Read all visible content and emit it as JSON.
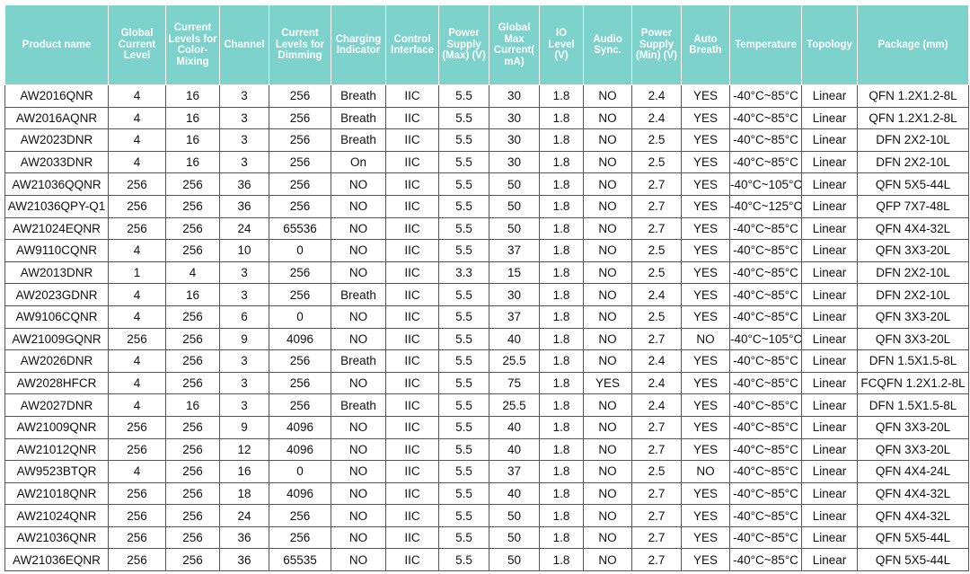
{
  "columns": [
    "Product name",
    "Global Current Level",
    "Current Levels for Color-Mixing",
    "Channel",
    "Current Levels for Dimming",
    "Charging Indicator",
    "Control Interface",
    "Power Supply (Max) (V)",
    "Global Max Current( mA)",
    "IO Level (V)",
    "Audio Sync.",
    "Power Supply (Min) (V)",
    "Auto Breath",
    "Temperature",
    "Topology",
    "Package (mm)"
  ],
  "rows": [
    [
      "AW2016QNR",
      "4",
      "16",
      "3",
      "256",
      "Breath",
      "IIC",
      "5.5",
      "30",
      "1.8",
      "NO",
      "2.4",
      "YES",
      "-40°C~85°C",
      "Linear",
      "QFN 1.2X1.2-8L"
    ],
    [
      "AW2016AQNR",
      "4",
      "16",
      "3",
      "256",
      "Breath",
      "IIC",
      "5.5",
      "30",
      "1.8",
      "NO",
      "2.4",
      "YES",
      "-40°C~85°C",
      "Linear",
      "QFN 1.2X1.2-8L"
    ],
    [
      "AW2023DNR",
      "4",
      "16",
      "3",
      "256",
      "Breath",
      "IIC",
      "5.5",
      "30",
      "1.8",
      "NO",
      "2.5",
      "YES",
      "-40°C~85°C",
      "Linear",
      "DFN 2X2-10L"
    ],
    [
      "AW2033DNR",
      "4",
      "16",
      "3",
      "256",
      "On",
      "IIC",
      "5.5",
      "30",
      "1.8",
      "NO",
      "2.5",
      "YES",
      "-40°C~85°C",
      "Linear",
      "DFN 2X2-10L"
    ],
    [
      "AW21036QQNR",
      "256",
      "256",
      "36",
      "256",
      "NO",
      "IIC",
      "5.5",
      "50",
      "1.8",
      "NO",
      "2.7",
      "YES",
      "-40°C~105°C",
      "Linear",
      "QFN 5X5-44L"
    ],
    [
      "AW21036QPY-Q1",
      "256",
      "256",
      "36",
      "256",
      "NO",
      "IIC",
      "5.5",
      "50",
      "1.8",
      "NO",
      "2.7",
      "YES",
      "-40°C~125°C",
      "Linear",
      "QFP 7X7-48L"
    ],
    [
      "AW21024EQNR",
      "256",
      "256",
      "24",
      "65536",
      "NO",
      "IIC",
      "5.5",
      "50",
      "1.8",
      "NO",
      "2.7",
      "YES",
      "-40°C~85°C",
      "Linear",
      "QFN 4X4-32L"
    ],
    [
      "AW9110CQNR",
      "4",
      "256",
      "10",
      "0",
      "NO",
      "IIC",
      "5.5",
      "37",
      "1.8",
      "NO",
      "2.5",
      "YES",
      "-40°C~85°C",
      "Linear",
      "QFN 3X3-20L"
    ],
    [
      "AW2013DNR",
      "1",
      "4",
      "3",
      "256",
      "NO",
      "IIC",
      "3.3",
      "15",
      "1.8",
      "NO",
      "2.5",
      "YES",
      "-40°C~85°C",
      "Linear",
      "DFN 2X2-10L"
    ],
    [
      "AW2023GDNR",
      "4",
      "16",
      "3",
      "256",
      "Breath",
      "IIC",
      "5.5",
      "30",
      "1.8",
      "NO",
      "2.4",
      "YES",
      "-40°C~85°C",
      "Linear",
      "DFN 2X2-10L"
    ],
    [
      "AW9106CQNR",
      "4",
      "256",
      "6",
      "0",
      "NO",
      "IIC",
      "5.5",
      "37",
      "1.8",
      "NO",
      "2.5",
      "YES",
      "-40°C~85°C",
      "Linear",
      "QFN 3X3-20L"
    ],
    [
      "AW21009GQNR",
      "256",
      "256",
      "9",
      "4096",
      "NO",
      "IIC",
      "5.5",
      "40",
      "1.8",
      "NO",
      "2.7",
      "NO",
      "-40°C~105°C",
      "Linear",
      "QFN 3X3-20L"
    ],
    [
      "AW2026DNR",
      "4",
      "256",
      "3",
      "256",
      "Breath",
      "IIC",
      "5.5",
      "25.5",
      "1.8",
      "NO",
      "2.4",
      "YES",
      "-40°C~85°C",
      "Linear",
      "DFN 1.5X1.5-8L"
    ],
    [
      "AW2028HFCR",
      "4",
      "256",
      "3",
      "256",
      "NO",
      "IIC",
      "5.5",
      "75",
      "1.8",
      "YES",
      "2.4",
      "YES",
      "-40°C~85°C",
      "Linear",
      "FCQFN 1.2X1.2-8L"
    ],
    [
      "AW2027DNR",
      "4",
      "16",
      "3",
      "256",
      "Breath",
      "IIC",
      "5.5",
      "25.5",
      "1.8",
      "NO",
      "2.4",
      "YES",
      "-40°C~85°C",
      "Linear",
      "DFN 1.5X1.5-8L"
    ],
    [
      "AW21009QNR",
      "256",
      "256",
      "9",
      "4096",
      "NO",
      "IIC",
      "5.5",
      "40",
      "1.8",
      "NO",
      "2.7",
      "YES",
      "-40°C~85°C",
      "Linear",
      "QFN 3X3-20L"
    ],
    [
      "AW21012QNR",
      "256",
      "256",
      "12",
      "4096",
      "NO",
      "IIC",
      "5.5",
      "40",
      "1.8",
      "NO",
      "2.7",
      "YES",
      "-40°C~85°C",
      "Linear",
      "QFN 3X3-20L"
    ],
    [
      "AW9523BTQR",
      "4",
      "256",
      "16",
      "0",
      "NO",
      "IIC",
      "5.5",
      "37",
      "1.8",
      "NO",
      "2.5",
      "NO",
      "-40°C~85°C",
      "Linear",
      "QFN 4X4-24L"
    ],
    [
      "AW21018QNR",
      "256",
      "256",
      "18",
      "4096",
      "NO",
      "IIC",
      "5.5",
      "40",
      "1.8",
      "NO",
      "2.7",
      "YES",
      "-40°C~85°C",
      "Linear",
      "QFN 4X4-32L"
    ],
    [
      "AW21024QNR",
      "256",
      "256",
      "24",
      "256",
      "NO",
      "IIC",
      "5.5",
      "50",
      "1.8",
      "NO",
      "2.7",
      "YES",
      "-40°C~85°C",
      "Linear",
      "QFN 4X4-32L"
    ],
    [
      "AW21036QNR",
      "256",
      "256",
      "36",
      "256",
      "NO",
      "IIC",
      "5.5",
      "50",
      "1.8",
      "NO",
      "2.7",
      "YES",
      "-40°C~85°C",
      "Linear",
      "QFN 5X5-44L"
    ],
    [
      "AW21036EQNR",
      "256",
      "256",
      "36",
      "65535",
      "NO",
      "IIC",
      "5.5",
      "50",
      "1.8",
      "NO",
      "2.7",
      "YES",
      "-40°C~85°C",
      "Linear",
      "QFN 5X5-44L"
    ]
  ],
  "colors": {
    "header_bg": "#7dd3cb",
    "header_text": "#ffffff",
    "border": "#555555"
  }
}
